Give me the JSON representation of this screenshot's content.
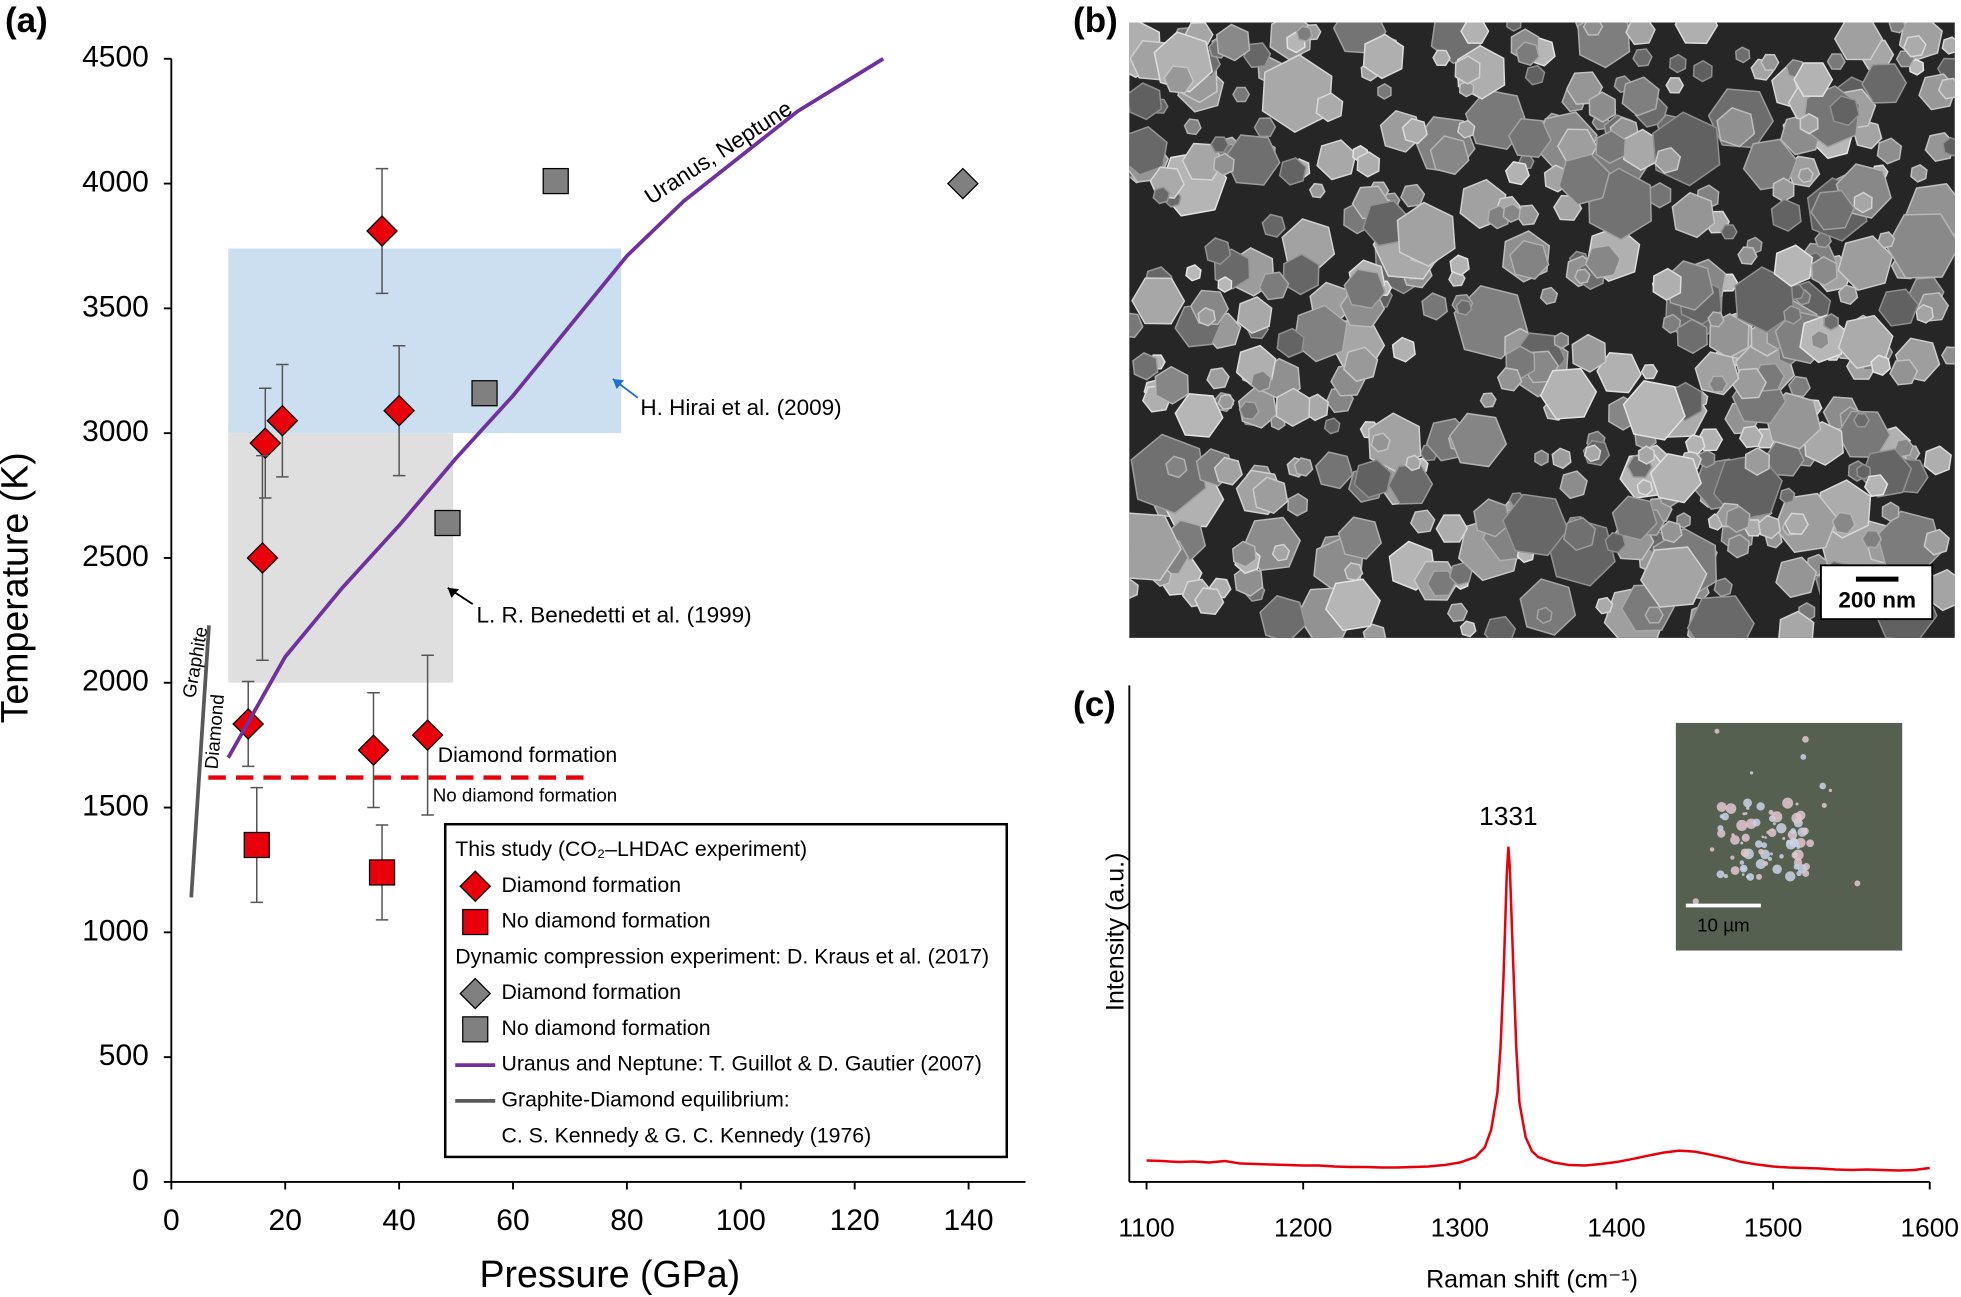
{
  "panels": {
    "a": "(a)",
    "b": "(b)",
    "c": "(c)",
    "sem_scale": "200 nm",
    "inset_scale": "10 µm"
  },
  "chart_data": [
    {
      "type": "scatter",
      "xlabel": "Pressure (GPa)",
      "ylabel": "Temperature (K)",
      "xlim": [
        0,
        150
      ],
      "ylim": [
        0,
        4500
      ],
      "xticks": [
        0,
        20,
        40,
        60,
        80,
        100,
        120,
        140
      ],
      "yticks": [
        0,
        500,
        1000,
        1500,
        2000,
        2500,
        3000,
        3500,
        4000,
        4500
      ],
      "series": [
        {
          "name": "Diamond formation",
          "color": "#e8000b",
          "marker": "diamond",
          "x": [
            13.5,
            16.5,
            19.5,
            16,
            37,
            40,
            35.5,
            45
          ],
          "values": [
            1835,
            2960,
            3050,
            2500,
            3810,
            3090,
            1730,
            1790
          ],
          "errors": [
            170,
            220,
            225,
            410,
            250,
            260,
            230,
            320
          ]
        },
        {
          "name": "No diamond formation",
          "color": "#e8000b",
          "marker": "square",
          "x": [
            15,
            37
          ],
          "values": [
            1350,
            1240
          ],
          "errors": [
            230,
            190
          ]
        },
        {
          "name": "Diamond formation",
          "color": "#808080",
          "marker": "diamond",
          "x": [
            139
          ],
          "values": [
            4000
          ]
        },
        {
          "name": "No diamond formation",
          "color": "#808080",
          "marker": "square",
          "x": [
            67.5,
            55,
            48.5
          ],
          "values": [
            4010,
            3160,
            2640
          ]
        },
        {
          "name": "Uranus and Neptune: T. Guillot & D. Gautier (2007)",
          "color": "#7030a0",
          "marker": "line",
          "x": [
            10,
            20,
            30,
            40,
            50,
            60,
            70,
            80,
            90,
            100,
            110,
            125
          ],
          "values": [
            1700,
            2104,
            2380,
            2630,
            2900,
            3150,
            3430,
            3710,
            3930,
            4110,
            4290,
            4500
          ]
        },
        {
          "name": "Graphite-Diamond equilibrium:",
          "color": "#595959",
          "marker": "line",
          "x": [
            3.5,
            6.6
          ],
          "values": [
            1140,
            2230
          ]
        }
      ],
      "legend_headings": [
        "This study (CO₂–LHDAC experiment)",
        "Dynamic compression experiment: D. Kraus et al. (2017)"
      ],
      "legend_note": "C. S. Kennedy & G. C. Kennedy (1976)",
      "regions": [
        {
          "label": "H. Hirai et al. (2009)",
          "color": "#c6dcef",
          "label_color": "#1f6fd0",
          "xlim": [
            10,
            79
          ],
          "ylim": [
            3000,
            3740
          ]
        },
        {
          "label": "L. R. Benedetti et al. (1999)",
          "color": "#dcdcdc",
          "label_color": "#000000",
          "xlim": [
            10,
            49.5
          ],
          "ylim": [
            2000,
            3000
          ]
        }
      ],
      "threshold": {
        "value": 1620,
        "xlim": [
          6.5,
          73
        ],
        "color": "#e8000b",
        "above": "Diamond formation",
        "below": "No diamond formation"
      },
      "curve_label": "Uranus, Neptune",
      "phase_labels": [
        "Graphite",
        "Diamond"
      ]
    },
    {
      "type": "line",
      "xlabel": "Raman shift (cm⁻¹)",
      "ylabel": "Intensity (a.u.)",
      "color": "#e8000b",
      "xlim": [
        1089,
        1600
      ],
      "ylim": [
        0,
        100
      ],
      "xticks": [
        1100,
        1200,
        1300,
        1400,
        1500,
        1600
      ],
      "peak_label": 1331,
      "x": [
        1100,
        1110,
        1120,
        1130,
        1140,
        1150,
        1160,
        1170,
        1180,
        1190,
        1200,
        1210,
        1220,
        1230,
        1240,
        1250,
        1260,
        1270,
        1280,
        1290,
        1300,
        1310,
        1316,
        1320,
        1324,
        1326,
        1328,
        1330,
        1331,
        1332,
        1334,
        1336,
        1338,
        1342,
        1346,
        1350,
        1360,
        1370,
        1380,
        1390,
        1400,
        1410,
        1420,
        1430,
        1440,
        1450,
        1460,
        1470,
        1480,
        1490,
        1500,
        1510,
        1520,
        1530,
        1540,
        1550,
        1560,
        1570,
        1580,
        1590,
        1600
      ],
      "values": [
        4.3,
        4.2,
        4.0,
        4.1,
        3.9,
        4.2,
        3.7,
        3.6,
        3.5,
        3.4,
        3.3,
        3.3,
        3.1,
        3.0,
        3.0,
        2.9,
        2.9,
        3.0,
        3.1,
        3.4,
        3.9,
        5.0,
        7.0,
        10.5,
        18,
        27,
        42,
        62,
        67.5,
        63,
        45,
        27,
        16,
        9,
        6.2,
        5.0,
        3.9,
        3.4,
        3.3,
        3.6,
        4.0,
        4.6,
        5.3,
        5.9,
        6.3,
        6.1,
        5.5,
        4.8,
        4.0,
        3.5,
        3.1,
        2.9,
        2.8,
        2.7,
        2.5,
        2.4,
        2.5,
        2.4,
        2.3,
        2.4,
        2.8
      ]
    }
  ]
}
